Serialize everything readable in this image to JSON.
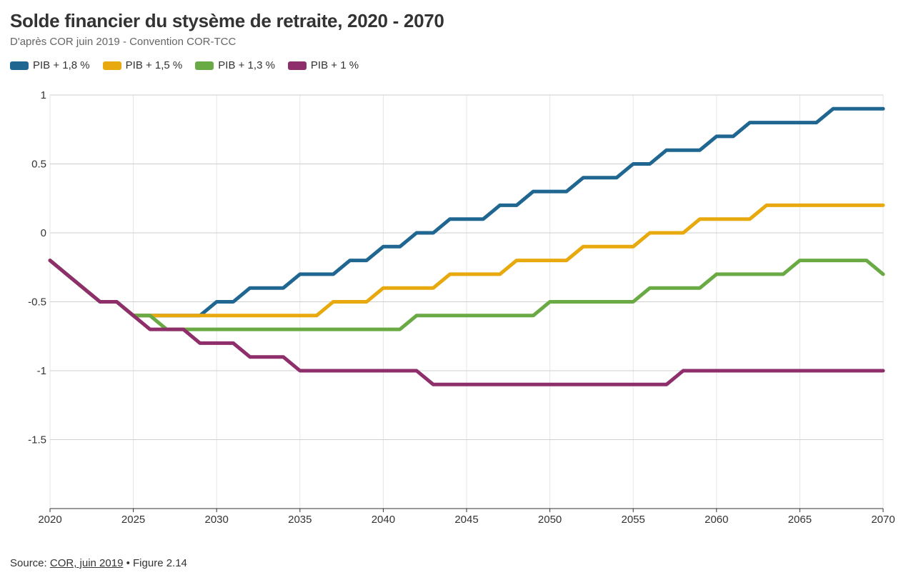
{
  "title": "Solde financier du stysème de retraite, 2020 - 2070",
  "subtitle": "D'après COR juin 2019 - Convention COR-TCC",
  "footer": {
    "source_prefix": "Source: ",
    "source_link": "COR, juin 2019",
    "source_suffix": " • Figure 2.14"
  },
  "chart_data": {
    "type": "line",
    "title": "Solde financier du stysème de retraite, 2020 - 2070",
    "subtitle": "D'après COR juin 2019 - Convention COR-TCC",
    "xlabel": "",
    "ylabel": "",
    "xlim": [
      2020,
      2070
    ],
    "ylim": [
      -2,
      1
    ],
    "x_ticks": [
      2020,
      2025,
      2030,
      2035,
      2040,
      2045,
      2050,
      2055,
      2060,
      2065,
      2070
    ],
    "y_ticks": [
      1,
      0.5,
      0,
      -0.5,
      -1,
      -1.5
    ],
    "y_tick_labels": [
      "1",
      "0.5",
      "0",
      "-0.5",
      "-1",
      "-1.5"
    ],
    "grid": true,
    "legend_position": "top-left",
    "x": [
      2020,
      2021,
      2022,
      2023,
      2024,
      2025,
      2026,
      2027,
      2028,
      2029,
      2030,
      2031,
      2032,
      2033,
      2034,
      2035,
      2036,
      2037,
      2038,
      2039,
      2040,
      2041,
      2042,
      2043,
      2044,
      2045,
      2046,
      2047,
      2048,
      2049,
      2050,
      2051,
      2052,
      2053,
      2054,
      2055,
      2056,
      2057,
      2058,
      2059,
      2060,
      2061,
      2062,
      2063,
      2064,
      2065,
      2066,
      2067,
      2068,
      2069,
      2070
    ],
    "series": [
      {
        "name": "PIB + 1,8 %",
        "color": "#1f6691",
        "values": [
          -0.2,
          -0.3,
          -0.4,
          -0.5,
          -0.5,
          -0.6,
          -0.6,
          -0.6,
          -0.6,
          -0.6,
          -0.5,
          -0.5,
          -0.4,
          -0.4,
          -0.4,
          -0.3,
          -0.3,
          -0.3,
          -0.2,
          -0.2,
          -0.1,
          -0.1,
          0,
          0,
          0.1,
          0.1,
          0.1,
          0.2,
          0.2,
          0.3,
          0.3,
          0.3,
          0.4,
          0.4,
          0.4,
          0.5,
          0.5,
          0.6,
          0.6,
          0.6,
          0.7,
          0.7,
          0.8,
          0.8,
          0.8,
          0.8,
          0.8,
          0.9,
          0.9,
          0.9,
          0.9
        ]
      },
      {
        "name": "PIB + 1,5 %",
        "color": "#e8a90e",
        "values": [
          -0.2,
          -0.3,
          -0.4,
          -0.5,
          -0.5,
          -0.6,
          -0.6,
          -0.6,
          -0.6,
          -0.6,
          -0.6,
          -0.6,
          -0.6,
          -0.6,
          -0.6,
          -0.6,
          -0.6,
          -0.5,
          -0.5,
          -0.5,
          -0.4,
          -0.4,
          -0.4,
          -0.4,
          -0.3,
          -0.3,
          -0.3,
          -0.3,
          -0.2,
          -0.2,
          -0.2,
          -0.2,
          -0.1,
          -0.1,
          -0.1,
          -0.1,
          0,
          0,
          0,
          0.1,
          0.1,
          0.1,
          0.1,
          0.2,
          0.2,
          0.2,
          0.2,
          0.2,
          0.2,
          0.2,
          0.2
        ]
      },
      {
        "name": "PIB + 1,3 %",
        "color": "#6aaa44",
        "values": [
          -0.2,
          -0.3,
          -0.4,
          -0.5,
          -0.5,
          -0.6,
          -0.6,
          -0.7,
          -0.7,
          -0.7,
          -0.7,
          -0.7,
          -0.7,
          -0.7,
          -0.7,
          -0.7,
          -0.7,
          -0.7,
          -0.7,
          -0.7,
          -0.7,
          -0.7,
          -0.6,
          -0.6,
          -0.6,
          -0.6,
          -0.6,
          -0.6,
          -0.6,
          -0.6,
          -0.5,
          -0.5,
          -0.5,
          -0.5,
          -0.5,
          -0.5,
          -0.4,
          -0.4,
          -0.4,
          -0.4,
          -0.3,
          -0.3,
          -0.3,
          -0.3,
          -0.3,
          -0.2,
          -0.2,
          -0.2,
          -0.2,
          -0.2,
          -0.3
        ]
      },
      {
        "name": "PIB + 1 %",
        "color": "#8e2f6b",
        "values": [
          -0.2,
          -0.3,
          -0.4,
          -0.5,
          -0.5,
          -0.6,
          -0.7,
          -0.7,
          -0.7,
          -0.8,
          -0.8,
          -0.8,
          -0.9,
          -0.9,
          -0.9,
          -1,
          -1,
          -1,
          -1,
          -1,
          -1,
          -1,
          -1,
          -1.1,
          -1.1,
          -1.1,
          -1.1,
          -1.1,
          -1.1,
          -1.1,
          -1.1,
          -1.1,
          -1.1,
          -1.1,
          -1.1,
          -1.1,
          -1.1,
          -1.1,
          -1,
          -1,
          -1,
          -1,
          -1,
          -1,
          -1,
          -1,
          -1,
          -1,
          -1,
          -1,
          -1
        ]
      }
    ]
  }
}
